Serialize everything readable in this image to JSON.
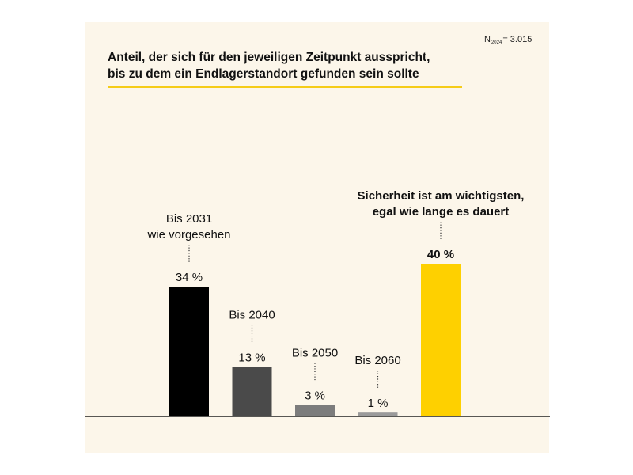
{
  "colors": {
    "background": "#fcf6ea",
    "accent_rule": "#f5cc18",
    "text": "#111111"
  },
  "sample_note": {
    "prefix": "N",
    "subscript": "2024",
    "suffix": "= 3.015"
  },
  "chart_data": {
    "type": "bar",
    "title_lines": [
      "Anteil, der sich für den jeweiligen Zeitpunkt ausspricht,",
      "bis zu dem ein Endlagerstandort gefunden sein sollte"
    ],
    "categories": [
      "Bis 2031 wie vorgesehen",
      "Bis 2040",
      "Bis 2050",
      "Bis 2060",
      "Sicherheit ist am wichtigsten, egal wie lange es dauert"
    ],
    "category_label_lines": [
      [
        "Bis 2031",
        "wie vorgesehen"
      ],
      [
        "Bis 2040"
      ],
      [
        "Bis 2050"
      ],
      [
        "Bis 2060"
      ],
      [
        "Sicherheit ist am wichtigsten,",
        "egal wie lange es dauert"
      ]
    ],
    "values": [
      34,
      13,
      3,
      1,
      40
    ],
    "value_labels": [
      "34 %",
      "13 %",
      "3 %",
      "1 %",
      "40 %"
    ],
    "unit": "%",
    "bar_colors": [
      "#000000",
      "#4a4a4a",
      "#7c7c7c",
      "#9a9a9a",
      "#fed000"
    ],
    "highlight_index": 4,
    "label_connector": "dotted",
    "ylim": [
      0,
      40
    ],
    "grid": false,
    "legend": "none"
  }
}
